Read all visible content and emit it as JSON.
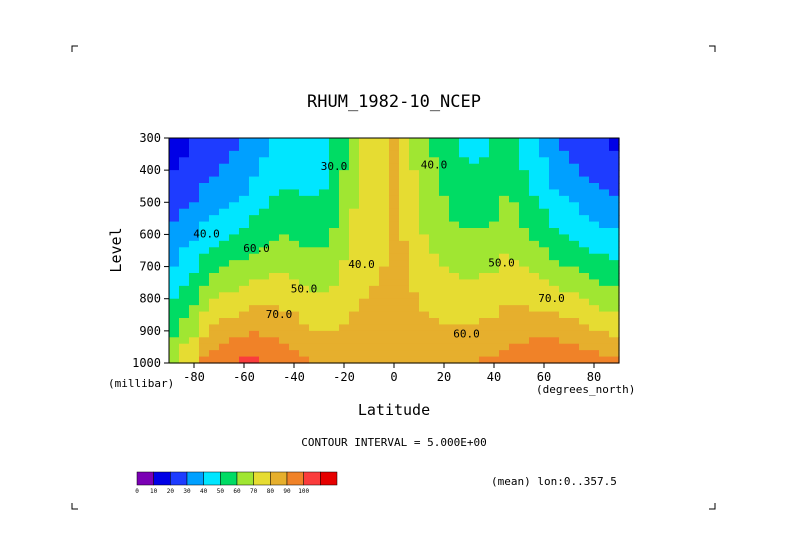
{
  "chart_data": {
    "type": "heatmap",
    "title": "RHUM_1982-10_NCEP",
    "xlabel": "Latitude",
    "ylabel": "Level",
    "x_units": "(degrees_north)",
    "y_units": "(millibar)",
    "xlim": [
      -90,
      90
    ],
    "ylim": [
      1000,
      300
    ],
    "x_ticks": [
      -80,
      -60,
      -40,
      -20,
      0,
      20,
      40,
      60,
      80
    ],
    "x_tick_labels": [
      "-80",
      "-60",
      "-40",
      "-20",
      "0",
      "20",
      "40",
      "60",
      "80"
    ],
    "y_ticks": [
      300,
      400,
      500,
      600,
      700,
      800,
      900,
      1000
    ],
    "y_tick_labels": [
      "300",
      "400",
      "500",
      "600",
      "700",
      "800",
      "900",
      "1000"
    ],
    "contour_interval_text": "CONTOUR INTERVAL = 5.000E+00",
    "mean_text": "(mean) lon:0..357.5",
    "contour_labels": [
      {
        "text": "30.0",
        "x": -24,
        "y": 400
      },
      {
        "text": "40.0",
        "x": 16,
        "y": 395
      },
      {
        "text": "40.0",
        "x": -75,
        "y": 610
      },
      {
        "text": "60.0",
        "x": -55,
        "y": 655
      },
      {
        "text": "40.0",
        "x": -13,
        "y": 705
      },
      {
        "text": "50.0",
        "x": -36,
        "y": 780
      },
      {
        "text": "50.0",
        "x": 43,
        "y": 700
      },
      {
        "text": "70.0",
        "x": -46,
        "y": 860
      },
      {
        "text": "70.0",
        "x": 63,
        "y": 810
      },
      {
        "text": "60.0",
        "x": 29,
        "y": 920
      }
    ],
    "profiles": {
      "lat": [
        -90,
        -85,
        -80,
        -75,
        -70,
        -65,
        -60,
        -55,
        -50,
        -45,
        -40,
        -35,
        -30,
        -25,
        -20,
        -15,
        -10,
        -5,
        0,
        5,
        10,
        15,
        20,
        25,
        30,
        35,
        40,
        45,
        50,
        55,
        60,
        65,
        70,
        75,
        80,
        85,
        90
      ],
      "rh_1000": [
        55,
        65,
        70,
        85,
        88,
        90,
        92,
        92,
        90,
        88,
        85,
        80,
        78,
        77,
        76,
        76,
        76,
        77,
        80,
        79,
        77,
        77,
        78,
        79,
        80,
        81,
        82,
        84,
        86,
        88,
        90,
        90,
        89,
        87,
        85,
        83,
        82
      ],
      "rh_300": [
        5,
        8,
        10,
        13,
        15,
        18,
        20,
        25,
        30,
        33,
        33,
        33,
        33,
        38,
        48,
        58,
        62,
        62,
        70,
        64,
        55,
        50,
        45,
        40,
        38,
        38,
        40,
        45,
        40,
        32,
        28,
        20,
        18,
        15,
        12,
        10,
        8
      ]
    },
    "color_levels": [
      0,
      10,
      20,
      30,
      40,
      50,
      60,
      70,
      80,
      90,
      100
    ],
    "colorbar_labels": [
      "0",
      "10",
      "20",
      "30",
      "40",
      "50",
      "60",
      "70",
      "80",
      "90",
      "100"
    ],
    "colors": [
      "#7a00b4",
      "#0000e6",
      "#1e3cff",
      "#00a0ff",
      "#00e6ff",
      "#00dc64",
      "#a0e632",
      "#e6dc32",
      "#e6af2d",
      "#f08228",
      "#fa3c3c",
      "#e60000"
    ]
  }
}
